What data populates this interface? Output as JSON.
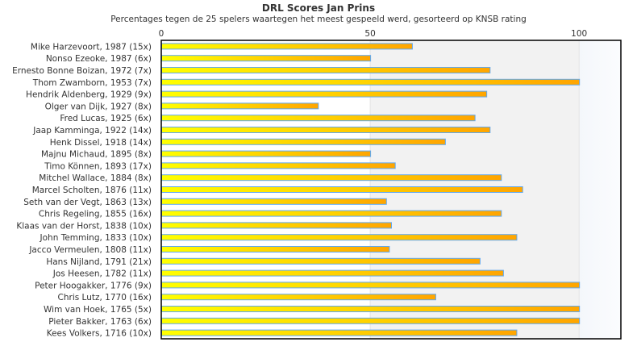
{
  "chart_data": {
    "type": "bar",
    "orientation": "horizontal",
    "title": "DRL Scores Jan Prins",
    "subtitle": "Percentages tegen de 25 spelers waartegen het meest gespeeld werd, gesorteerd op KNSB rating",
    "xlim": [
      0,
      110
    ],
    "xticks": [
      0,
      50,
      100
    ],
    "categories": [
      "Mike Harzevoort, 1987 (15x)",
      "Nonso Ezeoke, 1987 (6x)",
      "Ernesto Bonne Boizan, 1972 (7x)",
      "Thom Zwamborn, 1953 (7x)",
      "Hendrik Aldenberg, 1929 (9x)",
      "Olger van Dijk, 1927 (8x)",
      "Fred Lucas, 1925 (6x)",
      "Jaap Kamminga, 1922 (14x)",
      "Henk Dissel, 1918 (14x)",
      "Majnu Michaud, 1895 (8x)",
      "Timo Können, 1893 (17x)",
      "Mitchel Wallace, 1884 (8x)",
      "Marcel Scholten, 1876 (11x)",
      "Seth van der Vegt, 1863 (13x)",
      "Chris Regeling, 1855 (16x)",
      "Klaas van der Horst, 1838 (10x)",
      "John Temming, 1833 (10x)",
      "Jacco Vermeulen, 1808 (11x)",
      "Hans Nijland, 1791 (21x)",
      "Jos Heesen, 1782 (11x)",
      "Peter Hoogakker, 1776 (9x)",
      "Chris Lutz, 1770 (16x)",
      "Wim van Hoek, 1765 (5x)",
      "Pieter Bakker, 1763 (6x)",
      "Kees Volkers, 1716 (10x)"
    ],
    "values": [
      60,
      50,
      78.6,
      100,
      77.8,
      37.5,
      75,
      78.6,
      67.9,
      50,
      55.9,
      81.3,
      86.4,
      53.8,
      81.3,
      55,
      85,
      54.5,
      76.2,
      81.8,
      100,
      65.6,
      100,
      100,
      85
    ],
    "colors": {
      "bar_start": "#ffff00",
      "bar_end": "#ffa500",
      "bar_border": "#5fa8f0"
    }
  }
}
